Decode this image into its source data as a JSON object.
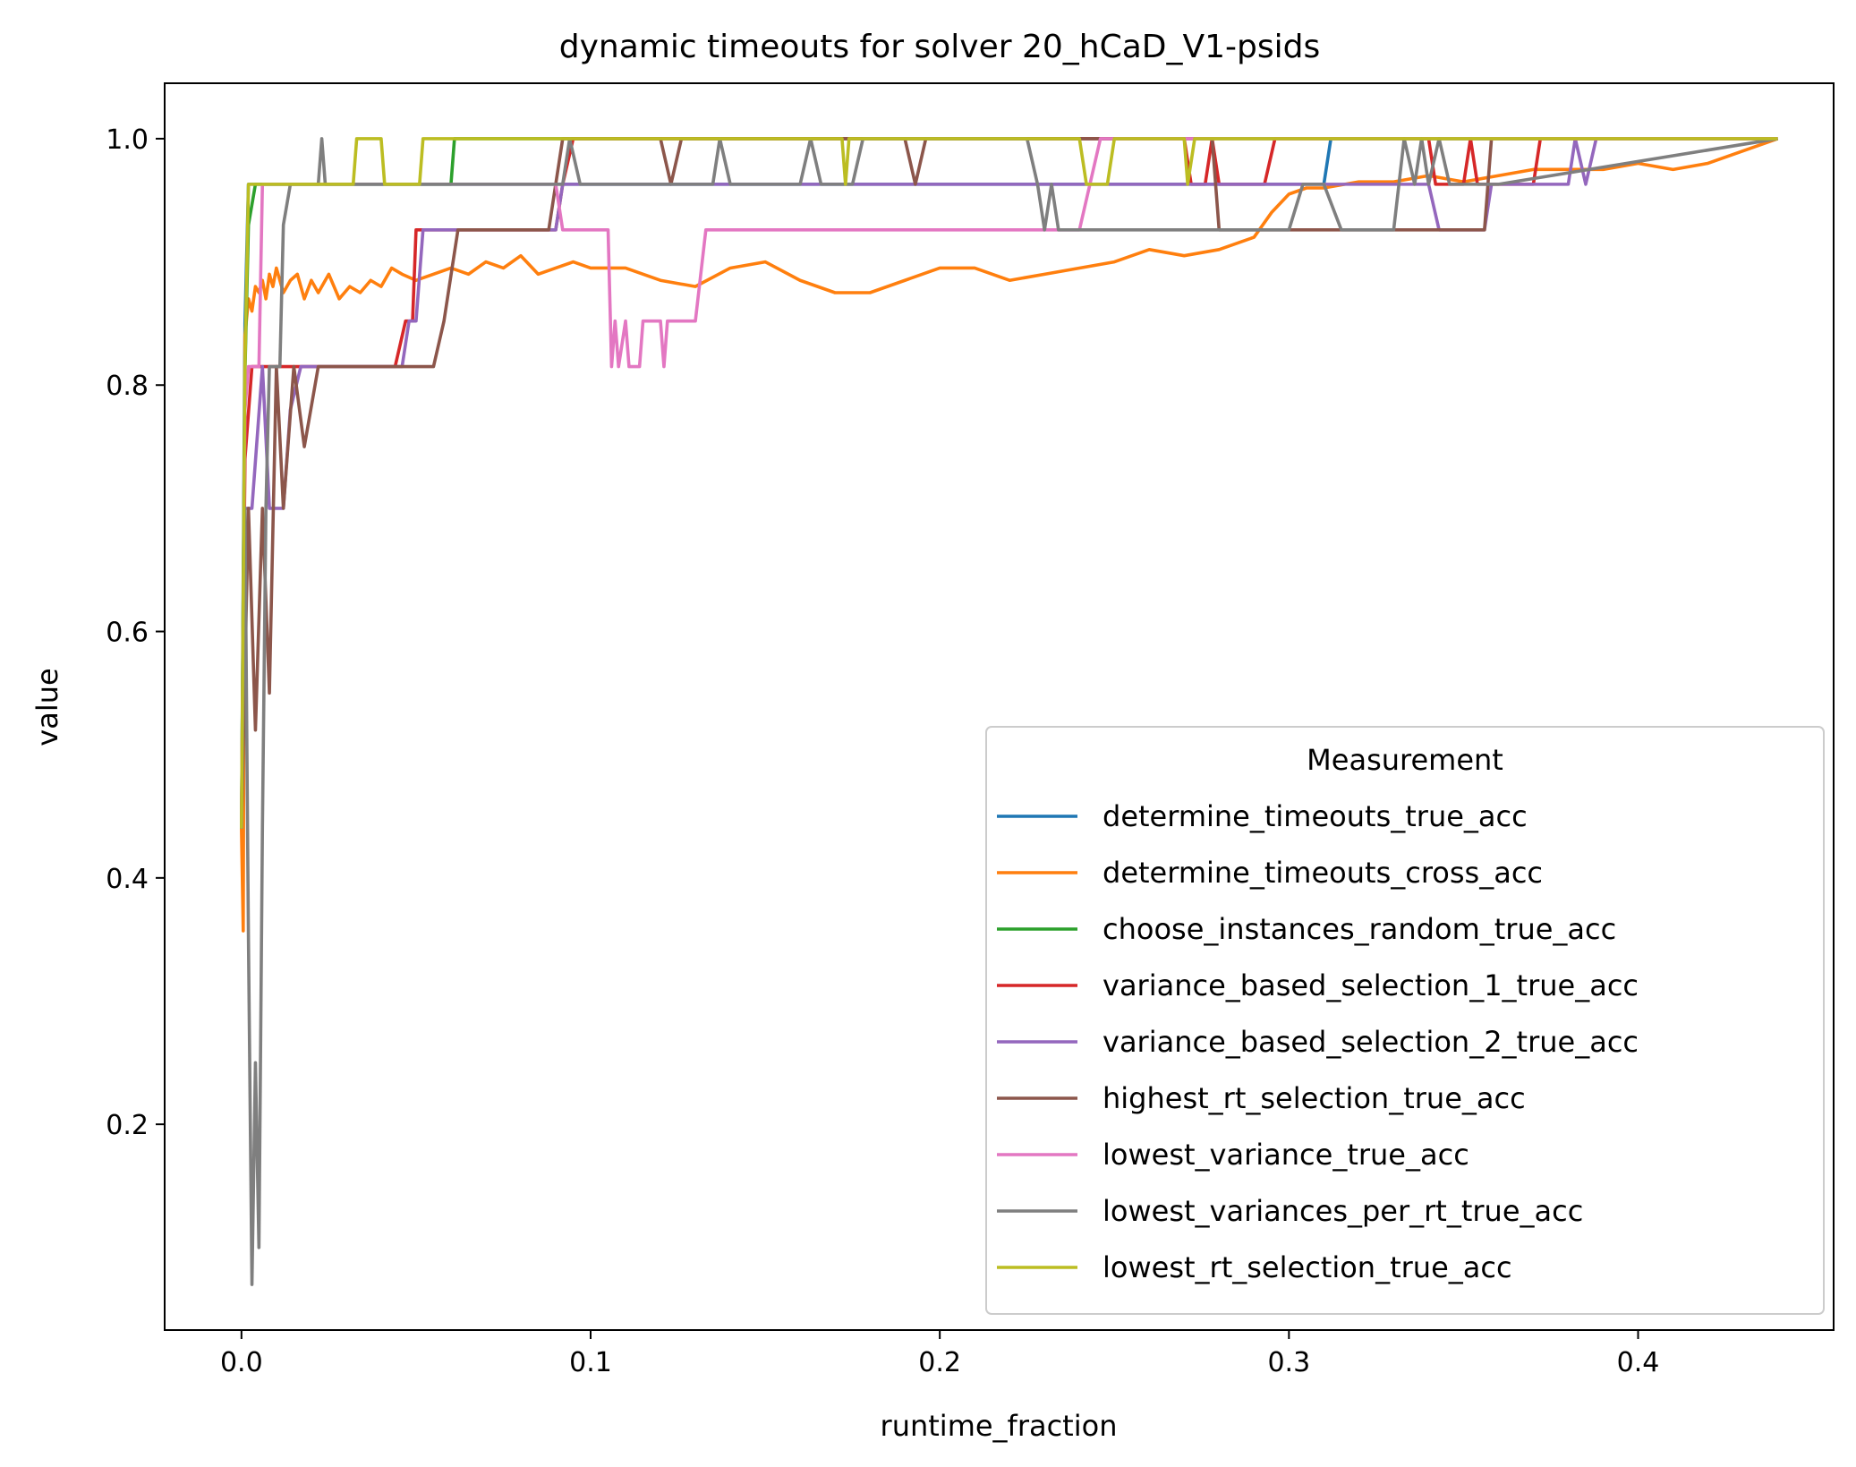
{
  "chart_data": {
    "type": "line",
    "title": "dynamic timeouts for solver 20_hCaD_V1-psids",
    "xlabel": "runtime_fraction",
    "ylabel": "value",
    "xlim": [
      -0.022,
      0.456
    ],
    "ylim": [
      0.033,
      1.045
    ],
    "xticks": [
      0.0,
      0.1,
      0.2,
      0.3,
      0.4
    ],
    "xtick_labels": [
      "0.0",
      "0.1",
      "0.2",
      "0.3",
      "0.4"
    ],
    "yticks": [
      0.2,
      0.4,
      0.6,
      0.8,
      1.0
    ],
    "ytick_labels": [
      "0.2",
      "0.4",
      "0.6",
      "0.8",
      "1.0"
    ],
    "grid": false,
    "legend": {
      "title": "Measurement",
      "position": "lower-right"
    },
    "series": [
      {
        "name": "determine_timeouts_true_acc",
        "color": "#1f77b4",
        "points": [
          [
            0,
            0.44
          ],
          [
            0.001,
            0.85
          ],
          [
            0.002,
            0.963
          ],
          [
            0.1,
            0.963
          ],
          [
            0.172,
            0.963
          ],
          [
            0.173,
            0.963
          ],
          [
            0.3,
            0.963
          ],
          [
            0.31,
            0.963
          ],
          [
            0.312,
            1.0
          ],
          [
            0.44,
            1.0
          ]
        ]
      },
      {
        "name": "determine_timeouts_cross_acc",
        "color": "#ff7f0e",
        "points": [
          [
            0,
            0.44
          ],
          [
            0.0005,
            0.357
          ],
          [
            0.001,
            0.84
          ],
          [
            0.002,
            0.87
          ],
          [
            0.003,
            0.86
          ],
          [
            0.004,
            0.88
          ],
          [
            0.005,
            0.875
          ],
          [
            0.006,
            0.885
          ],
          [
            0.007,
            0.87
          ],
          [
            0.008,
            0.89
          ],
          [
            0.009,
            0.88
          ],
          [
            0.01,
            0.895
          ],
          [
            0.012,
            0.875
          ],
          [
            0.014,
            0.885
          ],
          [
            0.016,
            0.89
          ],
          [
            0.018,
            0.87
          ],
          [
            0.02,
            0.885
          ],
          [
            0.022,
            0.875
          ],
          [
            0.025,
            0.89
          ],
          [
            0.028,
            0.87
          ],
          [
            0.031,
            0.88
          ],
          [
            0.034,
            0.875
          ],
          [
            0.037,
            0.885
          ],
          [
            0.04,
            0.88
          ],
          [
            0.043,
            0.895
          ],
          [
            0.046,
            0.89
          ],
          [
            0.05,
            0.885
          ],
          [
            0.055,
            0.89
          ],
          [
            0.06,
            0.895
          ],
          [
            0.065,
            0.89
          ],
          [
            0.07,
            0.9
          ],
          [
            0.075,
            0.895
          ],
          [
            0.08,
            0.905
          ],
          [
            0.085,
            0.89
          ],
          [
            0.09,
            0.895
          ],
          [
            0.095,
            0.9
          ],
          [
            0.1,
            0.895
          ],
          [
            0.11,
            0.895
          ],
          [
            0.12,
            0.885
          ],
          [
            0.13,
            0.88
          ],
          [
            0.14,
            0.895
          ],
          [
            0.15,
            0.9
          ],
          [
            0.16,
            0.885
          ],
          [
            0.17,
            0.875
          ],
          [
            0.18,
            0.875
          ],
          [
            0.19,
            0.885
          ],
          [
            0.2,
            0.895
          ],
          [
            0.21,
            0.895
          ],
          [
            0.22,
            0.885
          ],
          [
            0.23,
            0.89
          ],
          [
            0.24,
            0.895
          ],
          [
            0.25,
            0.9
          ],
          [
            0.26,
            0.91
          ],
          [
            0.27,
            0.905
          ],
          [
            0.28,
            0.91
          ],
          [
            0.29,
            0.92
          ],
          [
            0.295,
            0.94
          ],
          [
            0.3,
            0.955
          ],
          [
            0.305,
            0.96
          ],
          [
            0.31,
            0.96
          ],
          [
            0.32,
            0.965
          ],
          [
            0.33,
            0.965
          ],
          [
            0.34,
            0.97
          ],
          [
            0.35,
            0.965
          ],
          [
            0.36,
            0.97
          ],
          [
            0.37,
            0.975
          ],
          [
            0.38,
            0.975
          ],
          [
            0.39,
            0.975
          ],
          [
            0.4,
            0.98
          ],
          [
            0.41,
            0.975
          ],
          [
            0.42,
            0.98
          ],
          [
            0.43,
            0.99
          ],
          [
            0.44,
            1.0
          ]
        ]
      },
      {
        "name": "choose_instances_random_true_acc",
        "color": "#2ca02c",
        "points": [
          [
            0,
            0.44
          ],
          [
            0.001,
            0.81
          ],
          [
            0.002,
            0.93
          ],
          [
            0.004,
            0.963
          ],
          [
            0.06,
            0.963
          ],
          [
            0.061,
            1.0
          ],
          [
            0.44,
            1.0
          ]
        ]
      },
      {
        "name": "variance_based_selection_1_true_acc",
        "color": "#d62728",
        "points": [
          [
            0,
            0.44
          ],
          [
            0.001,
            0.74
          ],
          [
            0.003,
            0.815
          ],
          [
            0.005,
            0.815
          ],
          [
            0.044,
            0.815
          ],
          [
            0.047,
            0.852
          ],
          [
            0.049,
            0.852
          ],
          [
            0.05,
            0.926
          ],
          [
            0.09,
            0.926
          ],
          [
            0.092,
            0.963
          ],
          [
            0.095,
            1.0
          ],
          [
            0.27,
            1.0
          ],
          [
            0.272,
            0.963
          ],
          [
            0.276,
            0.963
          ],
          [
            0.278,
            1.0
          ],
          [
            0.28,
            0.963
          ],
          [
            0.293,
            0.963
          ],
          [
            0.296,
            1.0
          ],
          [
            0.34,
            1.0
          ],
          [
            0.342,
            0.963
          ],
          [
            0.35,
            0.963
          ],
          [
            0.352,
            1.0
          ],
          [
            0.354,
            0.963
          ],
          [
            0.37,
            0.963
          ],
          [
            0.372,
            1.0
          ],
          [
            0.44,
            1.0
          ]
        ]
      },
      {
        "name": "variance_based_selection_2_true_acc",
        "color": "#9467bd",
        "points": [
          [
            0,
            0.44
          ],
          [
            0.001,
            0.7
          ],
          [
            0.003,
            0.7
          ],
          [
            0.006,
            0.815
          ],
          [
            0.008,
            0.7
          ],
          [
            0.012,
            0.7
          ],
          [
            0.014,
            0.78
          ],
          [
            0.017,
            0.815
          ],
          [
            0.046,
            0.815
          ],
          [
            0.048,
            0.852
          ],
          [
            0.05,
            0.852
          ],
          [
            0.052,
            0.926
          ],
          [
            0.09,
            0.926
          ],
          [
            0.092,
            0.963
          ],
          [
            0.34,
            0.963
          ],
          [
            0.343,
            0.926
          ],
          [
            0.356,
            0.926
          ],
          [
            0.358,
            0.963
          ],
          [
            0.37,
            0.963
          ],
          [
            0.38,
            0.963
          ],
          [
            0.382,
            1.0
          ],
          [
            0.385,
            0.963
          ],
          [
            0.388,
            1.0
          ],
          [
            0.44,
            1.0
          ]
        ]
      },
      {
        "name": "highest_rt_selection_true_acc",
        "color": "#8c564b",
        "points": [
          [
            0,
            0.44
          ],
          [
            0.002,
            0.7
          ],
          [
            0.004,
            0.52
          ],
          [
            0.006,
            0.7
          ],
          [
            0.008,
            0.55
          ],
          [
            0.01,
            0.815
          ],
          [
            0.012,
            0.7
          ],
          [
            0.015,
            0.815
          ],
          [
            0.018,
            0.75
          ],
          [
            0.022,
            0.815
          ],
          [
            0.055,
            0.815
          ],
          [
            0.058,
            0.852
          ],
          [
            0.062,
            0.926
          ],
          [
            0.088,
            0.926
          ],
          [
            0.092,
            1.0
          ],
          [
            0.12,
            1.0
          ],
          [
            0.123,
            0.963
          ],
          [
            0.126,
            1.0
          ],
          [
            0.19,
            1.0
          ],
          [
            0.193,
            0.963
          ],
          [
            0.196,
            1.0
          ],
          [
            0.278,
            1.0
          ],
          [
            0.28,
            0.926
          ],
          [
            0.34,
            0.926
          ],
          [
            0.356,
            0.926
          ],
          [
            0.358,
            1.0
          ],
          [
            0.44,
            1.0
          ]
        ]
      },
      {
        "name": "lowest_variance_true_acc",
        "color": "#e377c2",
        "points": [
          [
            0,
            0.44
          ],
          [
            0.001,
            0.78
          ],
          [
            0.002,
            0.815
          ],
          [
            0.005,
            0.815
          ],
          [
            0.006,
            0.963
          ],
          [
            0.09,
            0.963
          ],
          [
            0.092,
            0.926
          ],
          [
            0.105,
            0.926
          ],
          [
            0.106,
            0.815
          ],
          [
            0.107,
            0.852
          ],
          [
            0.108,
            0.815
          ],
          [
            0.11,
            0.852
          ],
          [
            0.111,
            0.815
          ],
          [
            0.114,
            0.815
          ],
          [
            0.115,
            0.852
          ],
          [
            0.12,
            0.852
          ],
          [
            0.121,
            0.815
          ],
          [
            0.122,
            0.852
          ],
          [
            0.13,
            0.852
          ],
          [
            0.133,
            0.926
          ],
          [
            0.24,
            0.926
          ],
          [
            0.243,
            0.963
          ],
          [
            0.246,
            1.0
          ],
          [
            0.44,
            1.0
          ]
        ]
      },
      {
        "name": "lowest_variances_per_rt_true_acc",
        "color": "#7f7f7f",
        "points": [
          [
            0,
            0.44
          ],
          [
            0.001,
            0.7
          ],
          [
            0.002,
            0.35
          ],
          [
            0.003,
            0.07
          ],
          [
            0.004,
            0.25
          ],
          [
            0.005,
            0.1
          ],
          [
            0.006,
            0.44
          ],
          [
            0.007,
            0.7
          ],
          [
            0.008,
            0.815
          ],
          [
            0.011,
            0.815
          ],
          [
            0.012,
            0.93
          ],
          [
            0.014,
            0.963
          ],
          [
            0.022,
            0.963
          ],
          [
            0.023,
            1.0
          ],
          [
            0.024,
            0.963
          ],
          [
            0.092,
            0.963
          ],
          [
            0.094,
            1.0
          ],
          [
            0.097,
            0.963
          ],
          [
            0.135,
            0.963
          ],
          [
            0.137,
            1.0
          ],
          [
            0.14,
            0.963
          ],
          [
            0.16,
            0.963
          ],
          [
            0.163,
            1.0
          ],
          [
            0.166,
            0.963
          ],
          [
            0.175,
            0.963
          ],
          [
            0.178,
            1.0
          ],
          [
            0.225,
            1.0
          ],
          [
            0.228,
            0.963
          ],
          [
            0.23,
            0.926
          ],
          [
            0.232,
            0.963
          ],
          [
            0.234,
            0.926
          ],
          [
            0.3,
            0.926
          ],
          [
            0.304,
            0.963
          ],
          [
            0.31,
            0.963
          ],
          [
            0.315,
            0.926
          ],
          [
            0.33,
            0.926
          ],
          [
            0.333,
            1.0
          ],
          [
            0.336,
            0.963
          ],
          [
            0.338,
            1.0
          ],
          [
            0.34,
            0.963
          ],
          [
            0.343,
            1.0
          ],
          [
            0.346,
            0.963
          ],
          [
            0.36,
            0.963
          ],
          [
            0.44,
            1.0
          ]
        ]
      },
      {
        "name": "lowest_rt_selection_true_acc",
        "color": "#bcbd22",
        "points": [
          [
            0,
            0.44
          ],
          [
            0.001,
            0.815
          ],
          [
            0.002,
            0.963
          ],
          [
            0.032,
            0.963
          ],
          [
            0.033,
            1.0
          ],
          [
            0.04,
            1.0
          ],
          [
            0.041,
            0.963
          ],
          [
            0.051,
            0.963
          ],
          [
            0.052,
            1.0
          ],
          [
            0.172,
            1.0
          ],
          [
            0.173,
            0.963
          ],
          [
            0.174,
            1.0
          ],
          [
            0.24,
            1.0
          ],
          [
            0.242,
            0.963
          ],
          [
            0.248,
            0.963
          ],
          [
            0.25,
            1.0
          ],
          [
            0.27,
            1.0
          ],
          [
            0.271,
            0.963
          ],
          [
            0.273,
            1.0
          ],
          [
            0.44,
            1.0
          ]
        ]
      }
    ]
  }
}
